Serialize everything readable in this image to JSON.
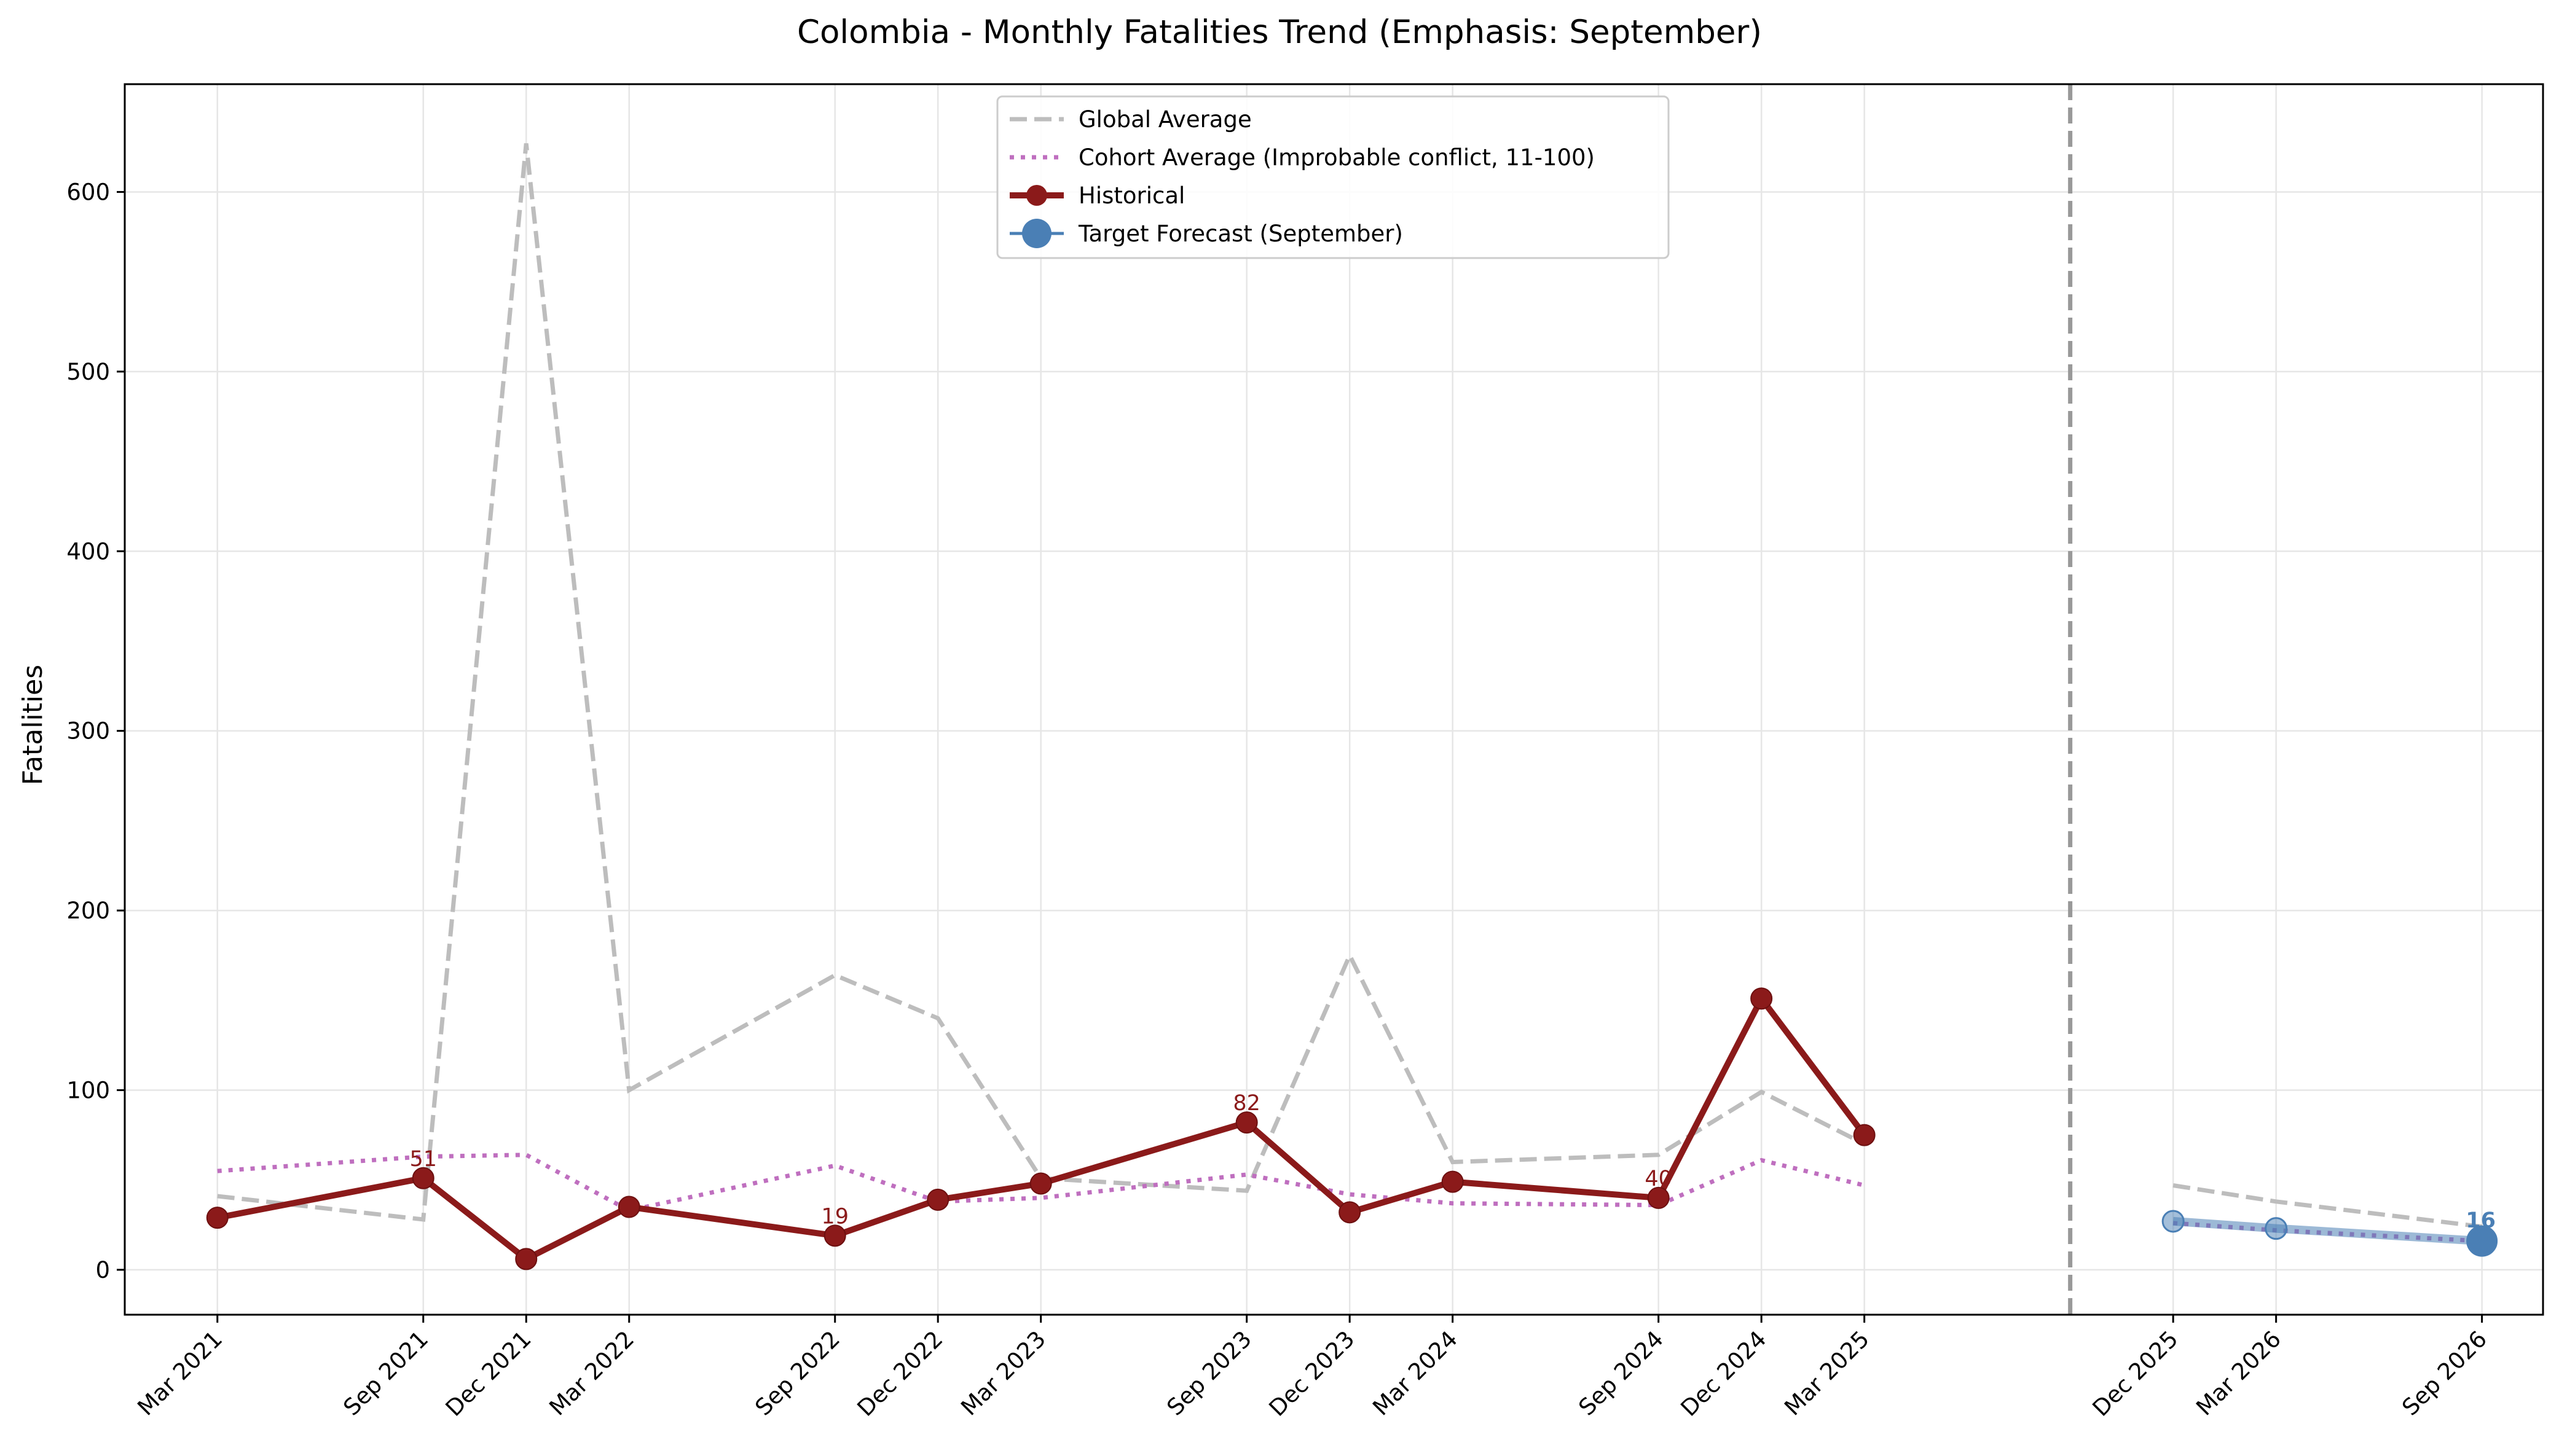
{
  "chart_data": {
    "type": "line",
    "title": "Colombia - Monthly Fatalities Trend (Emphasis: September)",
    "xlabel": "",
    "ylabel": "Fatalities",
    "ylim": [
      -25,
      660
    ],
    "yticks": [
      0,
      100,
      200,
      300,
      400,
      500,
      600
    ],
    "grid": true,
    "legend_position": "top-center",
    "forecast_divider_date": "2025-09",
    "x_ticks": [
      {
        "label": "Mar 2021",
        "date": "2021-03"
      },
      {
        "label": "Sep 2021",
        "date": "2021-09"
      },
      {
        "label": "Dec 2021",
        "date": "2021-12"
      },
      {
        "label": "Mar 2022",
        "date": "2022-03"
      },
      {
        "label": "Sep 2022",
        "date": "2022-09"
      },
      {
        "label": "Dec 2022",
        "date": "2022-12"
      },
      {
        "label": "Mar 2023",
        "date": "2023-03"
      },
      {
        "label": "Sep 2023",
        "date": "2023-09"
      },
      {
        "label": "Dec 2023",
        "date": "2023-12"
      },
      {
        "label": "Mar 2024",
        "date": "2024-03"
      },
      {
        "label": "Sep 2024",
        "date": "2024-09"
      },
      {
        "label": "Dec 2024",
        "date": "2024-12"
      },
      {
        "label": "Mar 2025",
        "date": "2025-03"
      },
      {
        "label": "Dec 2025",
        "date": "2025-12"
      },
      {
        "label": "Mar 2026",
        "date": "2026-03"
      },
      {
        "label": "Sep 2026",
        "date": "2026-09"
      }
    ],
    "series": [
      {
        "name": "Global Average",
        "style": "dashed",
        "color": "#bdbdbd",
        "segments": [
          [
            {
              "x": "2021-03",
              "y": 41
            },
            {
              "x": "2021-09",
              "y": 28
            },
            {
              "x": "2021-12",
              "y": 627
            },
            {
              "x": "2022-03",
              "y": 100
            },
            {
              "x": "2022-09",
              "y": 164
            },
            {
              "x": "2022-12",
              "y": 140
            },
            {
              "x": "2023-03",
              "y": 51
            },
            {
              "x": "2023-09",
              "y": 44
            },
            {
              "x": "2023-12",
              "y": 175
            },
            {
              "x": "2024-03",
              "y": 60
            },
            {
              "x": "2024-09",
              "y": 64
            },
            {
              "x": "2024-12",
              "y": 99
            },
            {
              "x": "2025-03",
              "y": 70
            }
          ],
          [
            {
              "x": "2025-12",
              "y": 47
            },
            {
              "x": "2026-03",
              "y": 38
            },
            {
              "x": "2026-09",
              "y": 24
            }
          ]
        ]
      },
      {
        "name": "Cohort Average (Improbable conflict, 11-100)",
        "style": "dotted",
        "color": "#bf6fbf",
        "segments": [
          [
            {
              "x": "2021-03",
              "y": 55
            },
            {
              "x": "2021-09",
              "y": 63
            },
            {
              "x": "2021-12",
              "y": 64
            },
            {
              "x": "2022-03",
              "y": 33
            },
            {
              "x": "2022-09",
              "y": 58
            },
            {
              "x": "2022-12",
              "y": 38
            },
            {
              "x": "2023-03",
              "y": 40
            },
            {
              "x": "2023-09",
              "y": 53
            },
            {
              "x": "2023-12",
              "y": 42
            },
            {
              "x": "2024-03",
              "y": 37
            },
            {
              "x": "2024-09",
              "y": 36
            },
            {
              "x": "2024-12",
              "y": 61
            },
            {
              "x": "2025-03",
              "y": 47
            }
          ],
          [
            {
              "x": "2025-12",
              "y": 26
            },
            {
              "x": "2026-03",
              "y": 22
            },
            {
              "x": "2026-09",
              "y": 16
            }
          ]
        ]
      },
      {
        "name": "Historical",
        "style": "solid-markers",
        "color": "#8b1a1a",
        "points": [
          {
            "x": "2021-03",
            "y": 29
          },
          {
            "x": "2021-09",
            "y": 51
          },
          {
            "x": "2021-12",
            "y": 6
          },
          {
            "x": "2022-03",
            "y": 35
          },
          {
            "x": "2022-09",
            "y": 19
          },
          {
            "x": "2022-12",
            "y": 39
          },
          {
            "x": "2023-03",
            "y": 48
          },
          {
            "x": "2023-09",
            "y": 82
          },
          {
            "x": "2023-12",
            "y": 32
          },
          {
            "x": "2024-03",
            "y": 49
          },
          {
            "x": "2024-09",
            "y": 40
          },
          {
            "x": "2024-12",
            "y": 151
          },
          {
            "x": "2025-03",
            "y": 75
          }
        ],
        "labeled_points": [
          {
            "x": "2021-09",
            "y": 51,
            "label": "51"
          },
          {
            "x": "2022-09",
            "y": 19,
            "label": "19"
          },
          {
            "x": "2023-09",
            "y": 82,
            "label": "82"
          },
          {
            "x": "2024-09",
            "y": 40,
            "label": "40"
          }
        ]
      },
      {
        "name": "Target Forecast (September)",
        "style": "solid-markers",
        "color": "#4a7fb5",
        "points": [
          {
            "x": "2025-12",
            "y": 27
          },
          {
            "x": "2026-03",
            "y": 23
          },
          {
            "x": "2026-09",
            "y": 16
          }
        ],
        "labeled_points": [
          {
            "x": "2026-09",
            "y": 16,
            "label": "16"
          }
        ]
      }
    ]
  }
}
